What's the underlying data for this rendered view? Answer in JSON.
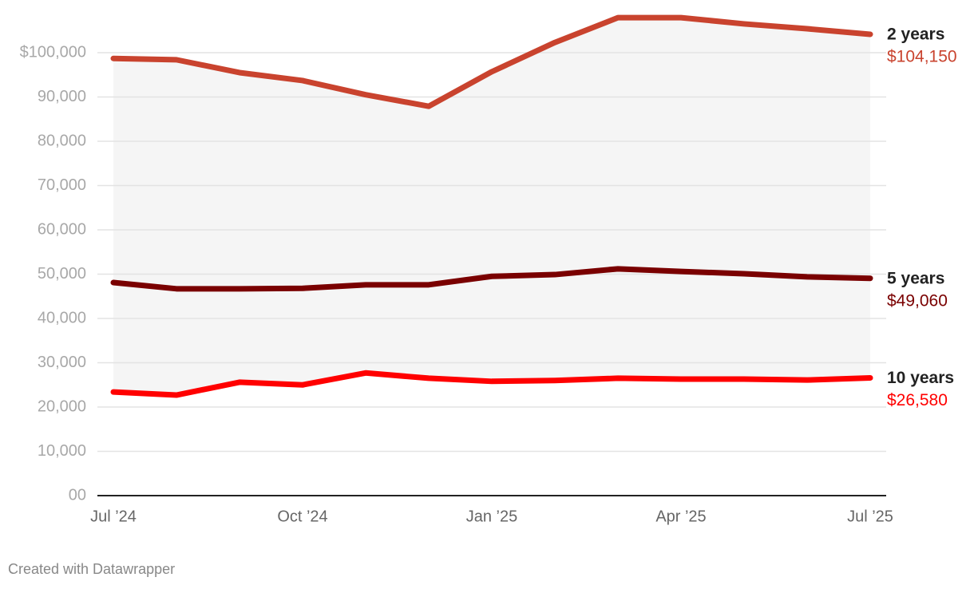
{
  "chart_data": {
    "type": "line",
    "categories": [
      "Jul ’24",
      null,
      null,
      "Oct ’24",
      null,
      null,
      "Jan ’25",
      null,
      null,
      "Apr ’25",
      null,
      null,
      "Jul ’25"
    ],
    "series": [
      {
        "name": "2 years",
        "color": "#c9432e",
        "values": [
          98700,
          98400,
          95500,
          93700,
          90500,
          87900,
          95700,
          102300,
          107900,
          107900,
          106500,
          105400,
          104150
        ],
        "value_labels": [
          null,
          null,
          null,
          null,
          null,
          null,
          null,
          null,
          null,
          null,
          null,
          null,
          "$104,150"
        ]
      },
      {
        "name": "5 years",
        "color": "#7a0000",
        "values": [
          48100,
          46700,
          46700,
          46800,
          47600,
          47600,
          49500,
          49900,
          51200,
          50600,
          50100,
          49400,
          49060
        ],
        "value_labels": [
          null,
          null,
          null,
          null,
          null,
          null,
          null,
          null,
          null,
          null,
          null,
          null,
          "$49,060"
        ]
      },
      {
        "name": "10 years",
        "color": "#ff0000",
        "values": [
          23400,
          22700,
          25600,
          25000,
          27700,
          26500,
          25800,
          26000,
          26500,
          26300,
          26300,
          26100,
          26580
        ],
        "value_labels": [
          null,
          null,
          null,
          null,
          null,
          null,
          null,
          null,
          null,
          null,
          null,
          null,
          "$26,580"
        ]
      }
    ],
    "ylim": [
      0,
      110000
    ],
    "yticks": [
      {
        "value": 0,
        "label": "00"
      },
      {
        "value": 10000,
        "label": "10,000"
      },
      {
        "value": 20000,
        "label": "20,000"
      },
      {
        "value": 30000,
        "label": "30,000"
      },
      {
        "value": 40000,
        "label": "40,000"
      },
      {
        "value": 50000,
        "label": "50,000"
      },
      {
        "value": 60000,
        "label": "60,000"
      },
      {
        "value": 70000,
        "label": "70,000"
      },
      {
        "value": 80000,
        "label": "80,000"
      },
      {
        "value": 90000,
        "label": "90,000"
      },
      {
        "value": 100000,
        "label": "$100,000"
      }
    ],
    "grid": true,
    "credit": "Created with Datawrapper"
  }
}
